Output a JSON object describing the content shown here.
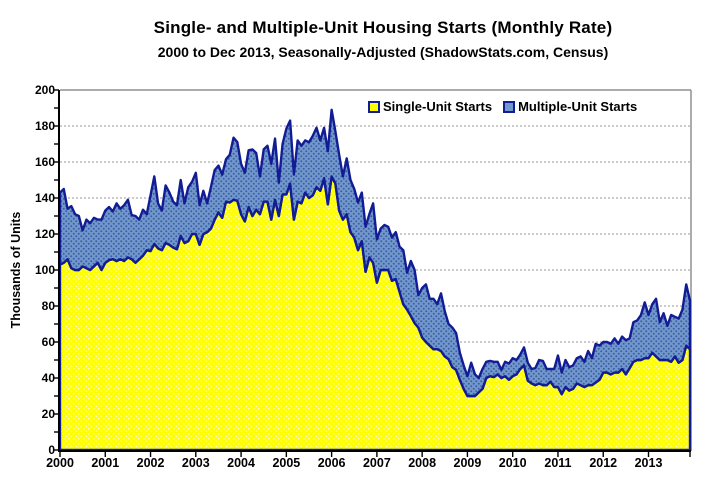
{
  "header": {
    "title": "Single- and Multiple-Unit Housing Starts (Monthly Rate)",
    "subtitle": "2000 to Dec 2013, Seasonally-Adjusted (ShadowStats.com, Census)"
  },
  "colors": {
    "single_fill": "#FFFF00",
    "single_dot": "#FAFAD2",
    "multiple_fill": "#7298CB",
    "multiple_dot": "#3A5FA8",
    "line": "#121C94",
    "gridline": "#999999",
    "plot_border": "#909090",
    "axis": "#000000"
  },
  "chart_data": {
    "type": "area",
    "stacked": true,
    "title": "Single- and Multiple-Unit Housing Starts (Monthly Rate)",
    "subtitle": "2000 to Dec 2013, Seasonally-Adjusted (ShadowStats.com, Census)",
    "xlabel": "",
    "ylabel": "Thousands of Units",
    "ylim": [
      0,
      200
    ],
    "ytick_step": 20,
    "yticks": [
      0,
      20,
      40,
      60,
      80,
      100,
      120,
      140,
      160,
      180,
      200
    ],
    "grid": "horizontal dotted every 20",
    "legend_position": "top-center inside plot",
    "x_unit": "month",
    "x_start": "Jan 2000",
    "x_end": "Dec 2013",
    "x_tick_labels": [
      "2000",
      "2001",
      "2002",
      "2003",
      "2004",
      "2005",
      "2006",
      "2007",
      "2008",
      "2009",
      "2010",
      "2011",
      "2012",
      "2013"
    ],
    "legend": [
      {
        "label": "Single-Unit Starts",
        "color": "#FFFF00"
      },
      {
        "label": "Multiple-Unit Starts",
        "color": "#7298CB"
      }
    ],
    "series": [
      {
        "name": "Single-Unit Starts",
        "values": [
          103,
          104,
          106,
          101,
          100,
          100,
          102,
          101,
          100,
          102,
          104,
          100,
          104,
          105.5,
          106,
          105,
          106,
          105,
          107,
          106,
          104,
          106,
          108,
          111,
          110.5,
          114.5,
          112,
          111,
          115,
          114,
          112.5,
          111.5,
          119,
          115,
          116,
          120,
          120,
          114,
          120,
          121,
          123,
          128,
          132,
          129,
          138,
          137.5,
          139,
          138.5,
          131,
          127,
          135,
          130,
          133.5,
          131,
          138,
          138,
          128,
          139,
          130,
          142,
          142,
          148,
          128,
          138,
          137,
          143,
          140,
          141.5,
          146,
          144,
          151,
          136.5,
          152,
          148,
          133,
          128,
          131,
          121,
          118,
          111,
          116,
          99,
          107,
          104,
          93,
          100,
          100,
          100,
          94,
          95,
          88,
          81,
          78,
          74.5,
          70.5,
          68,
          62.5,
          60,
          58,
          56,
          56,
          55,
          52,
          50.5,
          46,
          44.5,
          39,
          34,
          30,
          30,
          30,
          32,
          34,
          40,
          41,
          40.5,
          42,
          40,
          41,
          39,
          41,
          42,
          45,
          47,
          38.5,
          37,
          36,
          37,
          36,
          36,
          38,
          35,
          35,
          31,
          35,
          33,
          34,
          37,
          36,
          35,
          36,
          36,
          37.5,
          39,
          43,
          43,
          42,
          43,
          43,
          45,
          42,
          45.5,
          49,
          50,
          50,
          51,
          51,
          54,
          52,
          50,
          50,
          50,
          49,
          52,
          48.5,
          50,
          58,
          56
        ]
      },
      {
        "name": "Multiple-Unit Starts",
        "values": [
          40,
          41,
          28,
          34.5,
          31,
          30,
          20,
          27,
          26,
          27,
          24,
          28,
          29,
          29.5,
          26.5,
          32,
          28,
          31,
          32,
          24.5,
          26,
          22,
          25.5,
          20,
          31,
          37.5,
          25,
          22,
          32,
          29,
          25.5,
          24.5,
          31,
          22,
          30,
          29,
          34,
          22,
          24,
          16,
          23,
          27.5,
          26,
          24,
          23.5,
          26.5,
          34.5,
          32.5,
          28,
          27,
          31.5,
          37,
          31.5,
          21,
          29,
          31,
          31,
          34,
          18.5,
          28,
          36.5,
          35,
          25,
          34,
          32,
          29,
          31,
          33,
          33,
          28,
          28,
          29.5,
          37,
          29,
          31,
          24,
          31,
          29,
          27,
          26.5,
          27,
          25,
          24,
          33,
          24,
          23,
          25,
          24,
          24,
          26,
          25,
          30,
          20.5,
          30.5,
          29.5,
          18,
          27.5,
          32,
          26,
          28,
          25,
          32,
          25,
          19.5,
          22,
          20.5,
          15,
          13,
          11,
          18.5,
          12,
          8,
          11,
          9,
          8.5,
          8.5,
          7,
          4.5,
          8,
          9,
          10,
          8,
          8,
          10,
          10,
          8,
          9.5,
          13,
          13.5,
          9,
          7,
          10,
          17.5,
          12,
          15,
          13,
          13,
          14,
          16,
          14,
          19,
          15,
          21.5,
          19,
          17,
          17,
          17,
          19,
          16,
          18,
          19,
          16.5,
          22,
          22,
          25,
          31,
          24,
          27,
          32,
          21,
          26,
          19,
          26,
          22,
          24.5,
          28,
          34,
          27
        ]
      }
    ]
  }
}
